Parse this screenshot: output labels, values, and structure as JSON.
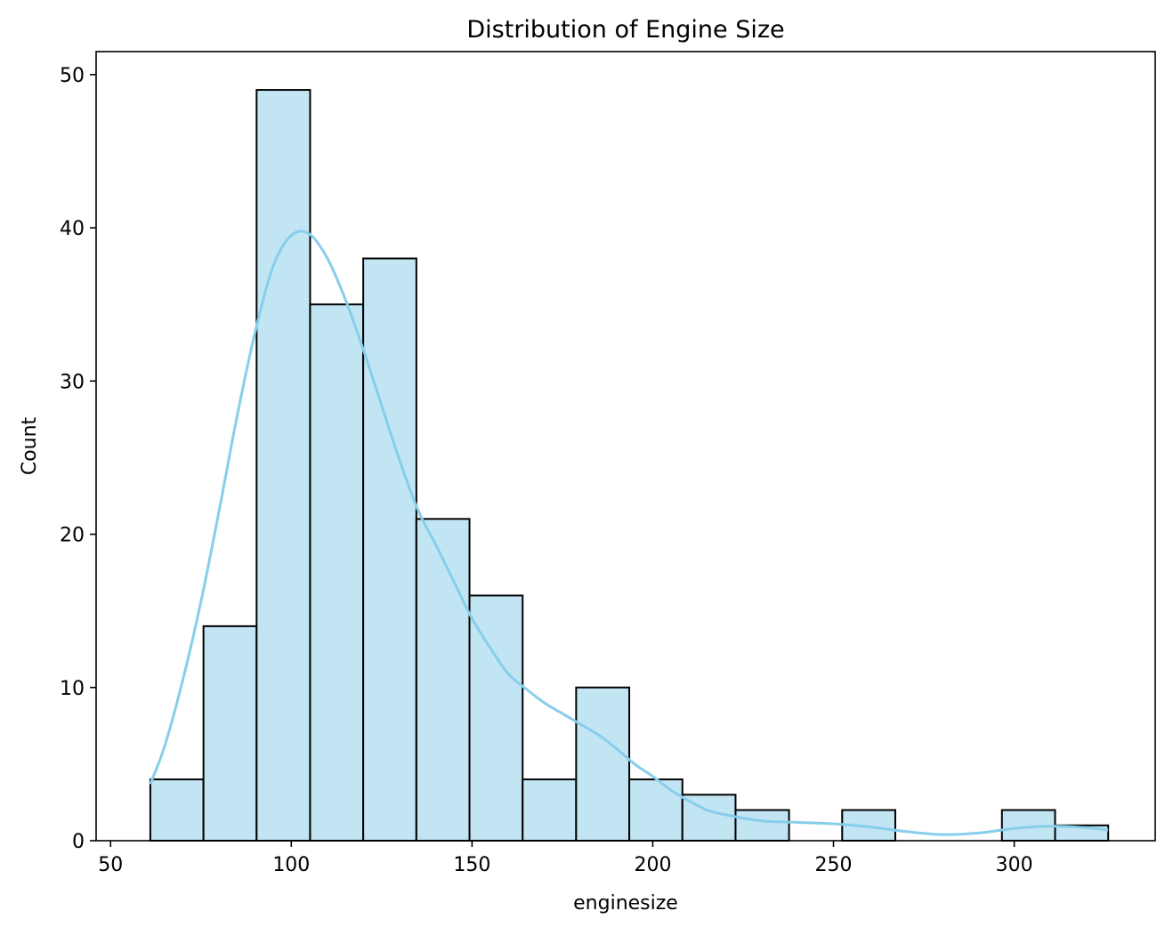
{
  "chart_data": {
    "type": "histogram",
    "title": "Distribution of Engine Size",
    "xlabel": "enginesize",
    "ylabel": "Count",
    "xlim": [
      46,
      339
    ],
    "ylim": [
      0,
      51.5
    ],
    "xticks": [
      50,
      100,
      150,
      200,
      250,
      300
    ],
    "yticks": [
      0,
      10,
      20,
      30,
      40,
      50
    ],
    "bins": [
      {
        "x0": 61.0,
        "x1": 75.7,
        "count": 4
      },
      {
        "x0": 75.7,
        "x1": 90.4,
        "count": 14
      },
      {
        "x0": 90.4,
        "x1": 105.2,
        "count": 49
      },
      {
        "x0": 105.2,
        "x1": 119.9,
        "count": 35
      },
      {
        "x0": 119.9,
        "x1": 134.6,
        "count": 38
      },
      {
        "x0": 134.6,
        "x1": 149.3,
        "count": 21
      },
      {
        "x0": 149.3,
        "x1": 164.0,
        "count": 16
      },
      {
        "x0": 164.0,
        "x1": 178.8,
        "count": 4
      },
      {
        "x0": 178.8,
        "x1": 193.5,
        "count": 10
      },
      {
        "x0": 193.5,
        "x1": 208.2,
        "count": 4
      },
      {
        "x0": 208.2,
        "x1": 222.9,
        "count": 3
      },
      {
        "x0": 222.9,
        "x1": 237.7,
        "count": 2
      },
      {
        "x0": 237.7,
        "x1": 252.4,
        "count": 0
      },
      {
        "x0": 252.4,
        "x1": 267.1,
        "count": 2
      },
      {
        "x0": 267.1,
        "x1": 281.8,
        "count": 0
      },
      {
        "x0": 281.8,
        "x1": 296.6,
        "count": 0
      },
      {
        "x0": 296.6,
        "x1": 311.3,
        "count": 2
      },
      {
        "x0": 311.3,
        "x1": 326.0,
        "count": 1
      }
    ],
    "kde": {
      "x": [
        61,
        65,
        70,
        75,
        80,
        85,
        90,
        95,
        100,
        105,
        110,
        115,
        120,
        125,
        130,
        135,
        140,
        145,
        150,
        155,
        160,
        165,
        170,
        175,
        180,
        185,
        190,
        195,
        200,
        205,
        210,
        215,
        220,
        230,
        240,
        250,
        260,
        270,
        280,
        290,
        300,
        310,
        320,
        326
      ],
      "y": [
        3.7,
        6.2,
        10.5,
        15.6,
        21.5,
        27.7,
        33.2,
        37.5,
        39.5,
        39.6,
        38.0,
        35.3,
        32.0,
        28.4,
        24.8,
        21.6,
        19.3,
        16.9,
        14.5,
        12.6,
        10.9,
        9.9,
        9.0,
        8.3,
        7.6,
        6.9,
        6.0,
        5.0,
        4.2,
        3.3,
        2.6,
        2.0,
        1.7,
        1.3,
        1.2,
        1.1,
        0.9,
        0.6,
        0.4,
        0.5,
        0.8,
        0.95,
        0.85,
        0.7
      ]
    },
    "colors": {
      "bar_fill": "#c2e5f4",
      "bar_edge": "#000000",
      "kde_line": "#87ceeb"
    },
    "grid": false,
    "legend": "none"
  }
}
